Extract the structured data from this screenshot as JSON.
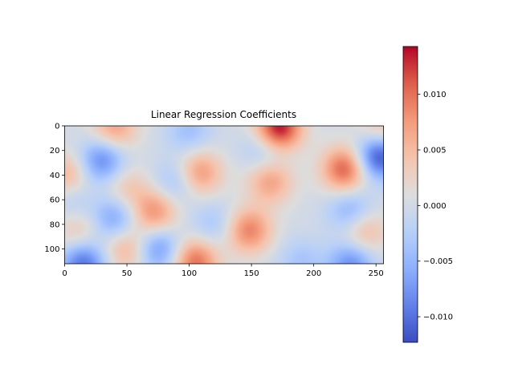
{
  "chart_data": [
    {
      "type": "heatmap",
      "title": "Linear Regression Coefficients",
      "xlabel": "",
      "ylabel": "",
      "colormap": "coolwarm",
      "x_extent": [
        0,
        256
      ],
      "y_extent": [
        0,
        112
      ],
      "y_inverted": true,
      "xticks": [
        0,
        50,
        100,
        150,
        200,
        250
      ],
      "xtick_labels": [
        "0",
        "50",
        "100",
        "150",
        "200",
        "250"
      ],
      "yticks": [
        0,
        20,
        40,
        60,
        80,
        100
      ],
      "ytick_labels": [
        "0",
        "20",
        "40",
        "60",
        "80",
        "100"
      ],
      "vmin": -0.0123,
      "vmax": 0.0143,
      "features": [
        {
          "x": 30,
          "y": 28,
          "value": -0.0085
        },
        {
          "x": 75,
          "y": 100,
          "value": -0.0075
        },
        {
          "x": 40,
          "y": 75,
          "value": -0.0065
        },
        {
          "x": 15,
          "y": 112,
          "value": -0.01
        },
        {
          "x": 230,
          "y": 112,
          "value": -0.008
        },
        {
          "x": 252,
          "y": 25,
          "value": -0.0123
        },
        {
          "x": 230,
          "y": 70,
          "value": -0.006
        },
        {
          "x": 90,
          "y": 45,
          "value": -0.0045
        },
        {
          "x": 120,
          "y": 80,
          "value": -0.0035
        },
        {
          "x": 160,
          "y": 20,
          "value": -0.004
        },
        {
          "x": 190,
          "y": 110,
          "value": -0.0035
        },
        {
          "x": 100,
          "y": 5,
          "value": -0.004
        },
        {
          "x": 5,
          "y": 60,
          "value": -0.003
        },
        {
          "x": 225,
          "y": 35,
          "value": 0.011
        },
        {
          "x": 172,
          "y": 2,
          "value": 0.0143
        },
        {
          "x": 148,
          "y": 85,
          "value": 0.009
        },
        {
          "x": 105,
          "y": 110,
          "value": 0.01
        },
        {
          "x": 108,
          "y": 38,
          "value": 0.008
        },
        {
          "x": 72,
          "y": 70,
          "value": 0.008
        },
        {
          "x": 165,
          "y": 45,
          "value": 0.007
        },
        {
          "x": 40,
          "y": 2,
          "value": 0.007
        },
        {
          "x": 2,
          "y": 40,
          "value": 0.006
        },
        {
          "x": 240,
          "y": 85,
          "value": 0.006
        },
        {
          "x": 50,
          "y": 100,
          "value": 0.006
        },
        {
          "x": 255,
          "y": 2,
          "value": 0.005
        },
        {
          "x": 10,
          "y": 85,
          "value": 0.004
        },
        {
          "x": 50,
          "y": 50,
          "value": 0.004
        }
      ],
      "colorbar": {
        "min": -0.0123,
        "max": 0.0143,
        "ticks": [
          -0.01,
          -0.005,
          0.0,
          0.005,
          0.01
        ],
        "tick_labels": [
          "−0.010",
          "−0.005",
          "0.000",
          "0.005",
          "0.010"
        ]
      }
    }
  ]
}
